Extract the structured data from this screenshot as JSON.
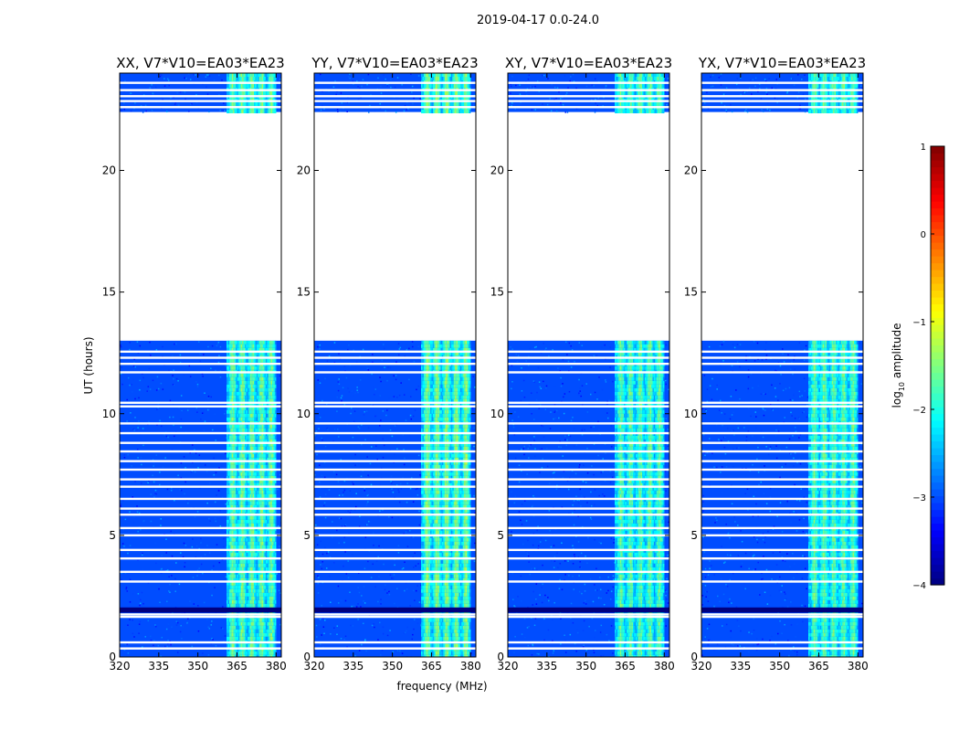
{
  "chart_data": {
    "type": "heatmap",
    "suptitle": "2019-04-17 0.0-24.0",
    "xlabel": "frequency (MHz)",
    "ylabel": "UT (hours)",
    "xlim": [
      320,
      382
    ],
    "ylim": [
      0,
      24
    ],
    "xticks": [
      320,
      335,
      350,
      365,
      380
    ],
    "yticks": [
      0,
      5,
      10,
      15,
      20
    ],
    "panels": [
      {
        "title": "XX, V7*V10=EA03*EA23",
        "rfi_level": 0.55
      },
      {
        "title": "YY, V7*V10=EA03*EA23",
        "rfi_level": 0.62
      },
      {
        "title": "XY, V7*V10=EA03*EA23",
        "rfi_level": 0.5
      },
      {
        "title": "YX, V7*V10=EA03*EA23",
        "rfi_level": 0.5
      }
    ],
    "data_ranges_ut_hours": [
      [
        0.0,
        13.0
      ],
      [
        22.4,
        24.0
      ]
    ],
    "rfi_band_mhz": [
      361,
      380
    ],
    "background_log10_amplitude": -3.0,
    "colorbar": {
      "label": "log10 amplitude",
      "label_main": "log",
      "label_sub": "10",
      "label_rest": " amplitude",
      "min": -4,
      "max": 1,
      "ticks": [
        -4,
        -3,
        -2,
        -1,
        0,
        1
      ],
      "colormap": "jet"
    }
  }
}
